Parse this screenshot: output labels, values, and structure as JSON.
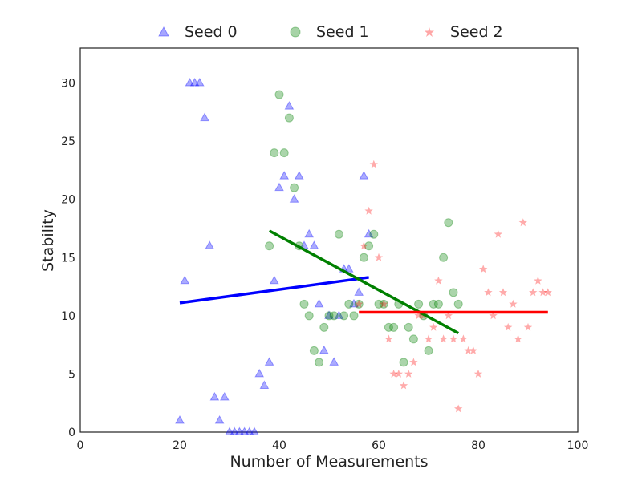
{
  "chart_data": {
    "type": "scatter",
    "title": "",
    "xlabel": "Number of Measurements",
    "ylabel": "Stability",
    "xlim": [
      0,
      100
    ],
    "ylim": [
      0,
      33
    ],
    "xticks": [
      "0",
      "20",
      "40",
      "60",
      "80",
      "100"
    ],
    "yticks": [
      "0",
      "5",
      "10",
      "15",
      "20",
      "25",
      "30"
    ],
    "grid": false,
    "legend_position": "top",
    "series": [
      {
        "name": "Seed 0",
        "marker": "triangle",
        "color": "#0000ff",
        "points": [
          [
            20,
            1
          ],
          [
            21,
            13
          ],
          [
            22,
            30
          ],
          [
            23,
            30
          ],
          [
            24,
            30
          ],
          [
            25,
            27
          ],
          [
            26,
            16
          ],
          [
            27,
            3
          ],
          [
            28,
            1
          ],
          [
            29,
            3
          ],
          [
            30,
            0
          ],
          [
            31,
            0
          ],
          [
            32,
            0
          ],
          [
            33,
            0
          ],
          [
            34,
            0
          ],
          [
            35,
            0
          ],
          [
            36,
            5
          ],
          [
            37,
            4
          ],
          [
            38,
            6
          ],
          [
            39,
            13
          ],
          [
            40,
            21
          ],
          [
            41,
            22
          ],
          [
            42,
            28
          ],
          [
            43,
            20
          ],
          [
            44,
            22
          ],
          [
            45,
            16
          ],
          [
            46,
            17
          ],
          [
            47,
            16
          ],
          [
            48,
            11
          ],
          [
            49,
            7
          ],
          [
            50,
            10
          ],
          [
            51,
            6
          ],
          [
            52,
            10
          ],
          [
            53,
            14
          ],
          [
            54,
            14
          ],
          [
            55,
            11
          ],
          [
            56,
            12
          ],
          [
            57,
            22
          ],
          [
            58,
            17
          ]
        ],
        "fit": {
          "x": [
            20,
            58
          ],
          "y": [
            11.1,
            13.3
          ],
          "color": "#0000ff"
        }
      },
      {
        "name": "Seed 1",
        "marker": "circle",
        "color": "#008000",
        "points": [
          [
            38,
            16
          ],
          [
            39,
            24
          ],
          [
            40,
            29
          ],
          [
            41,
            24
          ],
          [
            42,
            27
          ],
          [
            43,
            21
          ],
          [
            44,
            16
          ],
          [
            45,
            11
          ],
          [
            46,
            10
          ],
          [
            47,
            7
          ],
          [
            48,
            6
          ],
          [
            49,
            9
          ],
          [
            50,
            10
          ],
          [
            51,
            10
          ],
          [
            52,
            17
          ],
          [
            53,
            10
          ],
          [
            54,
            11
          ],
          [
            55,
            10
          ],
          [
            56,
            11
          ],
          [
            57,
            15
          ],
          [
            58,
            16
          ],
          [
            59,
            17
          ],
          [
            60,
            11
          ],
          [
            61,
            11
          ],
          [
            62,
            9
          ],
          [
            63,
            9
          ],
          [
            64,
            11
          ],
          [
            65,
            6
          ],
          [
            66,
            9
          ],
          [
            67,
            8
          ],
          [
            68,
            11
          ],
          [
            69,
            10
          ],
          [
            70,
            7
          ],
          [
            71,
            11
          ],
          [
            72,
            11
          ],
          [
            73,
            15
          ],
          [
            74,
            18
          ],
          [
            75,
            12
          ],
          [
            76,
            11
          ]
        ],
        "fit": {
          "x": [
            38,
            76
          ],
          "y": [
            17.3,
            8.5
          ],
          "color": "#008000"
        }
      },
      {
        "name": "Seed 2",
        "marker": "star",
        "color": "#ff0000",
        "points": [
          [
            56,
            11
          ],
          [
            57,
            16
          ],
          [
            58,
            19
          ],
          [
            59,
            23
          ],
          [
            60,
            15
          ],
          [
            61,
            11
          ],
          [
            62,
            8
          ],
          [
            63,
            5
          ],
          [
            64,
            5
          ],
          [
            65,
            4
          ],
          [
            66,
            5
          ],
          [
            67,
            6
          ],
          [
            68,
            10
          ],
          [
            69,
            10
          ],
          [
            70,
            8
          ],
          [
            71,
            9
          ],
          [
            72,
            13
          ],
          [
            73,
            8
          ],
          [
            74,
            10
          ],
          [
            75,
            8
          ],
          [
            76,
            2
          ],
          [
            77,
            8
          ],
          [
            78,
            7
          ],
          [
            79,
            7
          ],
          [
            80,
            5
          ],
          [
            81,
            14
          ],
          [
            82,
            12
          ],
          [
            83,
            10
          ],
          [
            84,
            17
          ],
          [
            85,
            12
          ],
          [
            86,
            9
          ],
          [
            87,
            11
          ],
          [
            88,
            8
          ],
          [
            89,
            18
          ],
          [
            90,
            9
          ],
          [
            91,
            12
          ],
          [
            92,
            13
          ],
          [
            93,
            12
          ],
          [
            94,
            12
          ]
        ],
        "fit": {
          "x": [
            56,
            94
          ],
          "y": [
            10.3,
            10.3
          ],
          "color": "#ff0000"
        }
      }
    ]
  }
}
